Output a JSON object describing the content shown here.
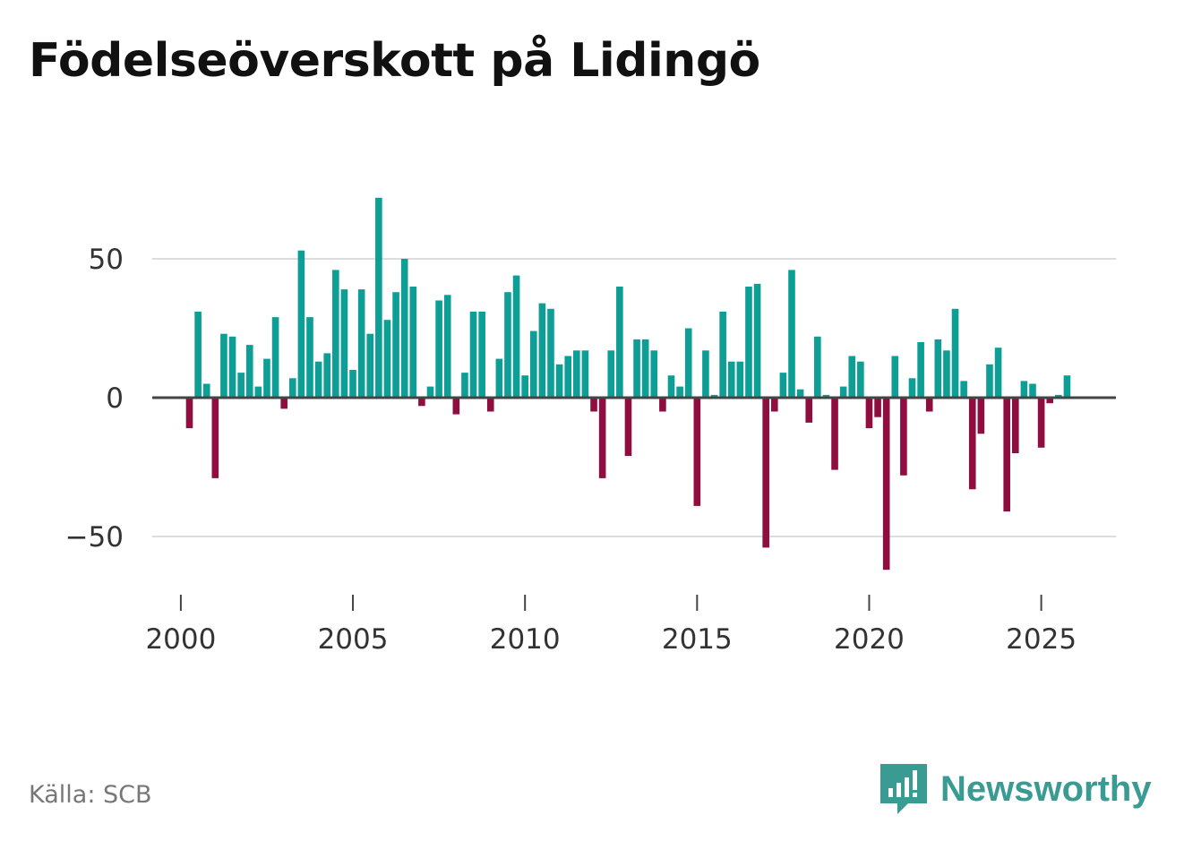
{
  "title": "Födelseöverskott på Lidingö",
  "source": "Källa: SCB",
  "brand": {
    "name": "Newsworthy",
    "logo_icon": "bar-chart-speech-bubble-icon"
  },
  "colors": {
    "positive": "#0d9e96",
    "negative": "#8f0e3f",
    "grid": "#dddddd",
    "zero_line": "#444444",
    "brand": "#3a9b92"
  },
  "chart_data": {
    "type": "bar",
    "title": "Födelseöverskott på Lidingö",
    "xlabel": "",
    "ylabel": "",
    "x_range": [
      1999.17,
      2027.17
    ],
    "ylim": [
      -75,
      80
    ],
    "yticks": [
      -50,
      0,
      50
    ],
    "ytick_labels": [
      "−50",
      "0",
      "50"
    ],
    "xticks": [
      2000,
      2005,
      2010,
      2015,
      2020,
      2025
    ],
    "xtick_labels": [
      "2000",
      "2005",
      "2010",
      "2015",
      "2020",
      "2025"
    ],
    "grid": true,
    "x_start": 2000.0,
    "x_step": 0.25,
    "values": [
      0,
      -11,
      31,
      5,
      -29,
      23,
      22,
      9,
      19,
      4,
      14,
      29,
      -4,
      7,
      53,
      29,
      13,
      16,
      46,
      39,
      10,
      39,
      23,
      72,
      28,
      38,
      50,
      40,
      -3,
      4,
      35,
      37,
      -6,
      9,
      31,
      31,
      -5,
      14,
      38,
      44,
      8,
      24,
      34,
      32,
      12,
      15,
      17,
      17,
      -5,
      -29,
      17,
      40,
      -21,
      21,
      21,
      17,
      -5,
      8,
      4,
      25,
      -39,
      17,
      1,
      31,
      13,
      13,
      40,
      41,
      -54,
      -5,
      9,
      46,
      3,
      -9,
      22,
      1,
      -26,
      4,
      15,
      13,
      -11,
      -7,
      -62,
      15,
      -28,
      7,
      20,
      -5,
      21,
      17,
      32,
      6,
      -33,
      -13,
      12,
      18,
      -41,
      -20,
      6,
      5,
      -18,
      -2,
      1,
      8
    ]
  }
}
